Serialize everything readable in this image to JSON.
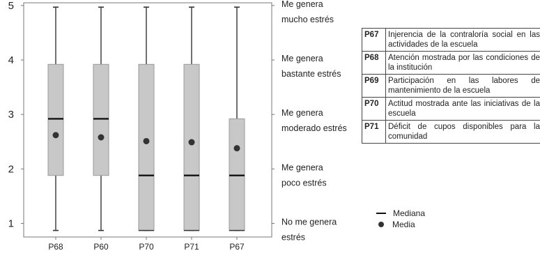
{
  "chart_data": {
    "type": "boxplot",
    "categories": [
      "P68",
      "P60",
      "P70",
      "P71",
      "P67"
    ],
    "y_ticks": [
      1,
      2,
      3,
      4,
      5
    ],
    "ylim": [
      0.75,
      5.05
    ],
    "boxes": [
      {
        "category": "P68",
        "min": 0.87,
        "q1": 1.88,
        "median": 2.92,
        "q3": 3.92,
        "max": 4.97,
        "mean": 2.62
      },
      {
        "category": "P60",
        "min": 0.87,
        "q1": 1.88,
        "median": 2.92,
        "q3": 3.92,
        "max": 4.97,
        "mean": 2.58
      },
      {
        "category": "P70",
        "min": 0.87,
        "q1": 0.87,
        "median": 1.88,
        "q3": 3.92,
        "max": 4.97,
        "mean": 2.51
      },
      {
        "category": "P71",
        "min": 0.87,
        "q1": 0.87,
        "median": 1.88,
        "q3": 3.92,
        "max": 4.97,
        "mean": 2.49
      },
      {
        "category": "P67",
        "min": 0.87,
        "q1": 0.87,
        "median": 1.88,
        "q3": 2.92,
        "max": 4.97,
        "mean": 2.38
      }
    ],
    "scale_labels": [
      {
        "level": 5,
        "lines": [
          "Me genera",
          "mucho estrés"
        ]
      },
      {
        "level": 4,
        "lines": [
          "Me genera",
          "bastante estrés"
        ]
      },
      {
        "level": 3,
        "lines": [
          "Me genera",
          "moderado estrés"
        ]
      },
      {
        "level": 2,
        "lines": [
          "Me genera",
          "poco estrés"
        ]
      },
      {
        "level": 1,
        "lines": [
          "No me genera",
          "estrés"
        ]
      }
    ],
    "colors": {
      "box_fill": "#c8c8c8",
      "box_stroke": "#9a9a9a",
      "whisker": "#333333",
      "median": "#111111",
      "mean": "#333333"
    }
  },
  "legend_table": [
    {
      "code": "P67",
      "text": "Injerencia de la contraloría social en las actividades de la escuela"
    },
    {
      "code": "P68",
      "text": "Atención mostrada por las condiciones de la institución"
    },
    {
      "code": "P69",
      "text": "Participación en las labores de mantenimiento de la escuela"
    },
    {
      "code": "P70",
      "text": "Actitud mostrada ante las iniciativas de la escuela"
    },
    {
      "code": "P71",
      "text": "Déficit de cupos disponibles para la comunidad"
    }
  ],
  "marker_legend": {
    "median_label": "Mediana",
    "mean_label": "Media"
  }
}
